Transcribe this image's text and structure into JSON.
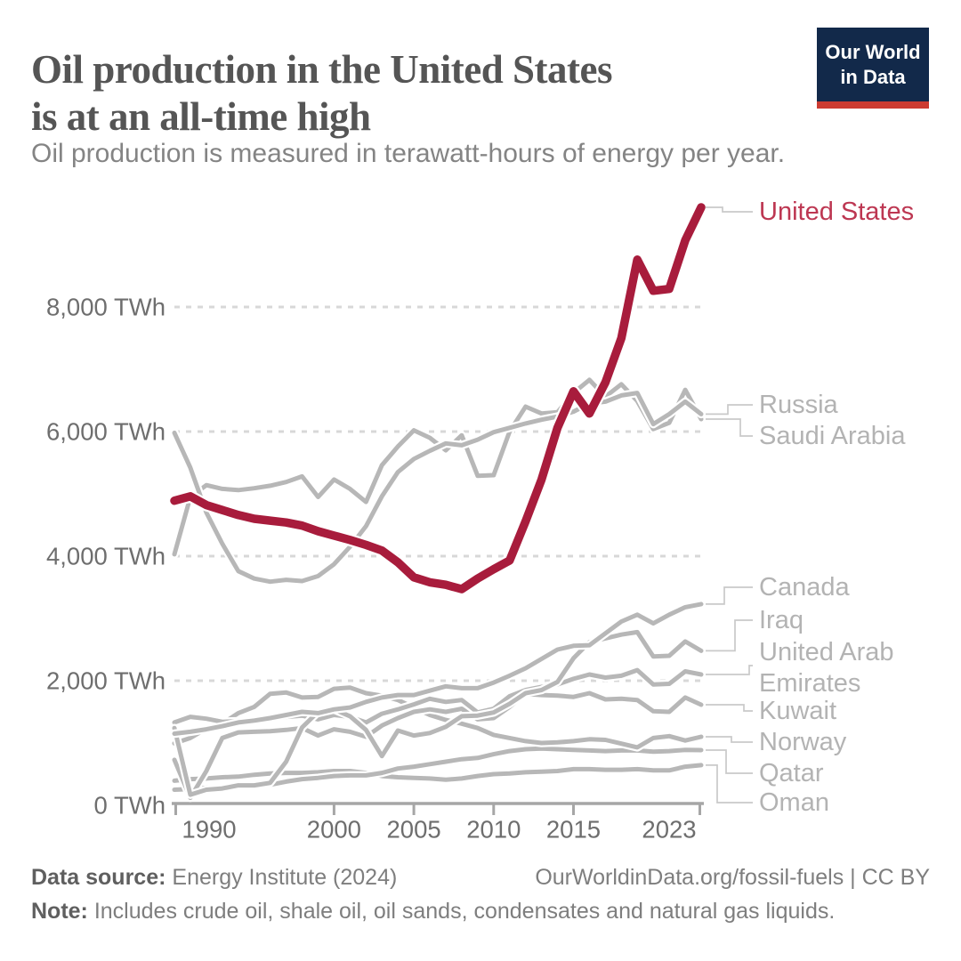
{
  "header": {
    "title": "Oil production in the United States\nis at an all-time high",
    "subtitle": "Oil production is measured in terawatt-hours of energy per year.",
    "logo": {
      "text": "Our World\nin Data",
      "bg_color": "#12294a",
      "accent_color": "#cc3b31"
    }
  },
  "footer": {
    "source_label": "Data source:",
    "source_value": " Energy Institute (2024)",
    "link": "OurWorldinData.org/fossil-fuels | CC BY",
    "note_label": "Note:",
    "note_value": " Includes crude oil, shale oil, oil sands, condensates and natural gas liquids."
  },
  "chart_data": {
    "type": "line",
    "unit": "TWh",
    "title": "Oil production in the United States is at an all-time high",
    "xlabel": "",
    "ylabel": "",
    "grid": "horizontal dotted",
    "legend_position": "right-edge labels with connector lines",
    "xlim": [
      1990,
      2023
    ],
    "ylim": [
      0,
      9700
    ],
    "x": [
      1990,
      1991,
      1992,
      1993,
      1994,
      1995,
      1996,
      1997,
      1998,
      1999,
      2000,
      2001,
      2002,
      2003,
      2004,
      2005,
      2006,
      2007,
      2008,
      2009,
      2010,
      2011,
      2012,
      2013,
      2014,
      2015,
      2016,
      2017,
      2018,
      2019,
      2020,
      2021,
      2022,
      2023
    ],
    "xtick_labels": [
      "1990",
      "2000",
      "2005",
      "2010",
      "2015",
      "2023"
    ],
    "xticks": [
      1990,
      2000,
      2005,
      2010,
      2015,
      2023
    ],
    "yticks": [
      {
        "value": 0,
        "label": "0 TWh"
      },
      {
        "value": 2000,
        "label": "2,000 TWh"
      },
      {
        "value": 4000,
        "label": "4,000 TWh"
      },
      {
        "value": 6000,
        "label": "6,000 TWh"
      },
      {
        "value": 8000,
        "label": "8,000 TWh"
      }
    ],
    "colors": {
      "highlight": "#a81c3c",
      "highlight_label": "#bd3752",
      "muted": "#b7b7b7",
      "grid": "#d8d8d8",
      "axis": "#a6a6a6",
      "axis_text": "#6e6e6e",
      "legend_text": "#b3b3b3"
    },
    "series": [
      {
        "name": "United States",
        "highlight": true,
        "values": [
          4890,
          4960,
          4820,
          4740,
          4660,
          4600,
          4570,
          4540,
          4490,
          4400,
          4330,
          4260,
          4180,
          4090,
          3900,
          3660,
          3580,
          3540,
          3470,
          3640,
          3790,
          3930,
          4560,
          5230,
          6060,
          6645,
          6290,
          6790,
          7500,
          8760,
          8260,
          8290,
          9070,
          9600
        ]
      },
      {
        "name": "Russia",
        "highlight": false,
        "values": [
          5980,
          5420,
          4700,
          4200,
          3760,
          3640,
          3590,
          3620,
          3600,
          3680,
          3870,
          4150,
          4480,
          4960,
          5350,
          5560,
          5690,
          5810,
          5780,
          5870,
          5990,
          6060,
          6130,
          6190,
          6240,
          6320,
          6450,
          6480,
          6580,
          6620,
          6120,
          6280,
          6480,
          6280
        ]
      },
      {
        "name": "Saudi Arabia",
        "highlight": false,
        "values": [
          4030,
          4950,
          5140,
          5080,
          5060,
          5090,
          5130,
          5190,
          5280,
          4950,
          5230,
          5080,
          4870,
          5460,
          5760,
          6020,
          5900,
          5700,
          5940,
          5290,
          5300,
          6000,
          6400,
          6290,
          6310,
          6620,
          6830,
          6560,
          6760,
          6490,
          6040,
          6140,
          6670,
          6200
        ]
      },
      {
        "name": "Canada",
        "highlight": false,
        "values": [
          1150,
          1180,
          1220,
          1270,
          1330,
          1360,
          1400,
          1450,
          1500,
          1480,
          1540,
          1570,
          1660,
          1730,
          1770,
          1770,
          1840,
          1910,
          1880,
          1880,
          1970,
          2080,
          2200,
          2350,
          2500,
          2560,
          2570,
          2760,
          2950,
          3060,
          2920,
          3060,
          3180,
          3230
        ]
      },
      {
        "name": "Iraq",
        "highlight": false,
        "values": [
          1240,
          170,
          250,
          270,
          320,
          320,
          360,
          700,
          1250,
          1500,
          1540,
          1430,
          1210,
          790,
          1200,
          1120,
          1160,
          1260,
          1430,
          1440,
          1490,
          1630,
          1800,
          1850,
          1980,
          2360,
          2620,
          2680,
          2740,
          2780,
          2390,
          2400,
          2630,
          2480
        ]
      },
      {
        "name": "United Arab Emirates",
        "label_lines": [
          "United Arab",
          "Emirates"
        ],
        "highlight": false,
        "values": [
          1330,
          1420,
          1390,
          1340,
          1350,
          1360,
          1380,
          1420,
          1440,
          1380,
          1450,
          1420,
          1330,
          1470,
          1540,
          1620,
          1710,
          1660,
          1690,
          1490,
          1550,
          1750,
          1850,
          1900,
          1940,
          2030,
          2100,
          2050,
          2080,
          2170,
          1940,
          1950,
          2150,
          2100
        ]
      },
      {
        "name": "Kuwait",
        "highlight": false,
        "values": [
          730,
          120,
          550,
          1080,
          1170,
          1180,
          1190,
          1210,
          1240,
          1120,
          1220,
          1180,
          1100,
          1280,
          1400,
          1500,
          1540,
          1500,
          1550,
          1380,
          1400,
          1580,
          1790,
          1770,
          1760,
          1740,
          1800,
          1700,
          1710,
          1690,
          1510,
          1500,
          1730,
          1615
        ]
      },
      {
        "name": "Norway",
        "highlight": false,
        "values": [
          995,
          1080,
          1230,
          1310,
          1480,
          1580,
          1790,
          1810,
          1730,
          1740,
          1870,
          1890,
          1800,
          1760,
          1690,
          1570,
          1450,
          1370,
          1310,
          1240,
          1130,
          1080,
          1030,
          1000,
          1010,
          1030,
          1060,
          1050,
          990,
          930,
          1080,
          1110,
          1040,
          1100
        ]
      },
      {
        "name": "Qatar",
        "highlight": false,
        "values": [
          250,
          260,
          280,
          290,
          300,
          310,
          330,
          380,
          420,
          440,
          470,
          480,
          480,
          520,
          590,
          620,
          660,
          700,
          740,
          760,
          820,
          870,
          900,
          910,
          900,
          890,
          880,
          870,
          880,
          880,
          860,
          870,
          890,
          885
        ]
      },
      {
        "name": "Oman",
        "highlight": false,
        "values": [
          395,
          420,
          430,
          450,
          460,
          490,
          510,
          520,
          520,
          530,
          550,
          550,
          520,
          470,
          450,
          440,
          430,
          410,
          430,
          470,
          500,
          510,
          530,
          540,
          550,
          580,
          580,
          570,
          570,
          580,
          560,
          560,
          620,
          645
        ]
      }
    ]
  }
}
